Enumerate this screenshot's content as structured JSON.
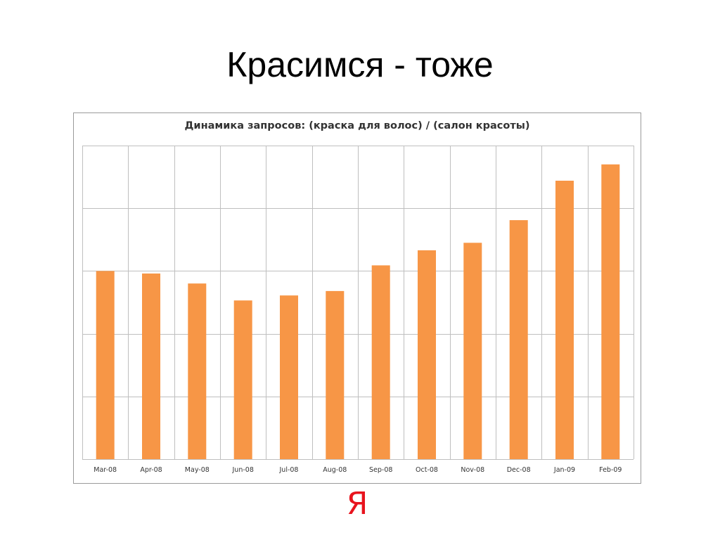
{
  "slide": {
    "title": "Красимся - тоже"
  },
  "logo": {
    "text": "Я",
    "color": "#e8141e"
  },
  "chart_data": {
    "type": "bar",
    "title": "Динамика запросов: (краска для волос) / (салон красоты)",
    "xlabel": "",
    "ylabel": "",
    "categories": [
      "Mar-08",
      "Apr-08",
      "May-08",
      "Jun-08",
      "Jul-08",
      "Aug-08",
      "Sep-08",
      "Oct-08",
      "Nov-08",
      "Dec-08",
      "Jan-09",
      "Feb-09"
    ],
    "values": [
      3.0,
      2.96,
      2.8,
      2.53,
      2.61,
      2.68,
      3.09,
      3.33,
      3.45,
      3.81,
      4.44,
      4.7
    ],
    "ylim": [
      0,
      5
    ],
    "y_tick_count": 5,
    "y_tick_labels_shown": false,
    "grid": true,
    "bar_color": "#f79646",
    "grid_color": "#bfbfbf"
  }
}
